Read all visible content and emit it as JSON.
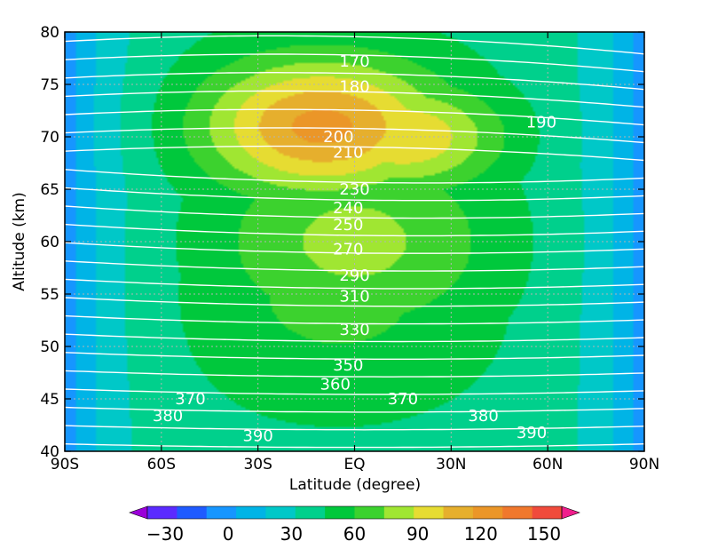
{
  "chart_data": {
    "type": "heatmap",
    "title": "",
    "xlabel": "Latitude (degree)",
    "ylabel": "Altitude (km)",
    "xlim": [
      -90,
      90
    ],
    "ylim": [
      40,
      80
    ],
    "grid": true,
    "x_ticks": [
      {
        "value": -90,
        "label": "90S"
      },
      {
        "value": -60,
        "label": "60S"
      },
      {
        "value": -30,
        "label": "30S"
      },
      {
        "value": 0,
        "label": "EQ"
      },
      {
        "value": 30,
        "label": "30N"
      },
      {
        "value": 60,
        "label": "60N"
      },
      {
        "value": 90,
        "label": "90N"
      }
    ],
    "y_ticks": [
      {
        "value": 40,
        "label": "40"
      },
      {
        "value": 45,
        "label": "45"
      },
      {
        "value": 50,
        "label": "50"
      },
      {
        "value": 55,
        "label": "55"
      },
      {
        "value": 60,
        "label": "60"
      },
      {
        "value": 65,
        "label": "65"
      },
      {
        "value": 70,
        "label": "70"
      },
      {
        "value": 75,
        "label": "75"
      },
      {
        "value": 80,
        "label": "80"
      }
    ],
    "shading": {
      "levels": [
        -30,
        -15,
        0,
        15,
        30,
        45,
        60,
        75,
        90,
        105,
        120,
        135,
        150
      ],
      "colors": [
        "#9b00d9",
        "#5b2bff",
        "#1f5bff",
        "#1696ff",
        "#00b4e6",
        "#00c8c8",
        "#00d08c",
        "#00c83c",
        "#3cd22e",
        "#a0e632",
        "#e6dc32",
        "#e6af2d",
        "#eb9628",
        "#f0782d",
        "#f04b3c",
        "#f01e8c"
      ],
      "colorbar_labels": [
        {
          "value": -30,
          "label": "−30"
        },
        {
          "value": 0,
          "label": "0"
        },
        {
          "value": 30,
          "label": "30"
        },
        {
          "value": 60,
          "label": "60"
        },
        {
          "value": 90,
          "label": "90"
        },
        {
          "value": 120,
          "label": "120"
        },
        {
          "value": 150,
          "label": "150"
        }
      ],
      "center": {
        "lat": -10,
        "alt": 71,
        "value": 140
      },
      "lobes": [
        {
          "lat": 15,
          "alt": 70,
          "value": 120
        },
        {
          "lat": 0,
          "alt": 60,
          "value": 95
        },
        {
          "lat": -5,
          "alt": 55,
          "value": 80
        }
      ],
      "edge_value": 5,
      "bottom_value": 55
    },
    "contours": {
      "color": "#ffffff",
      "levels": [
        170,
        180,
        190,
        200,
        210,
        220,
        230,
        240,
        250,
        260,
        270,
        280,
        290,
        300,
        310,
        320,
        330,
        340,
        350,
        360,
        370,
        380,
        390
      ],
      "labels": [
        {
          "text": "170",
          "lat": 0,
          "alt": 77.2
        },
        {
          "text": "180",
          "lat": 0,
          "alt": 74.8
        },
        {
          "text": "190",
          "lat": 58,
          "alt": 71.4
        },
        {
          "text": "200",
          "lat": -5,
          "alt": 70.0
        },
        {
          "text": "210",
          "lat": -2,
          "alt": 68.5
        },
        {
          "text": "230",
          "lat": 0,
          "alt": 65.0
        },
        {
          "text": "240",
          "lat": -2,
          "alt": 63.2
        },
        {
          "text": "250",
          "lat": -2,
          "alt": 61.6
        },
        {
          "text": "270",
          "lat": -2,
          "alt": 59.3
        },
        {
          "text": "290",
          "lat": 0,
          "alt": 56.8
        },
        {
          "text": "310",
          "lat": 0,
          "alt": 54.8
        },
        {
          "text": "330",
          "lat": 0,
          "alt": 51.6
        },
        {
          "text": "350",
          "lat": -2,
          "alt": 48.2
        },
        {
          "text": "360",
          "lat": -6,
          "alt": 46.4
        },
        {
          "text": "370",
          "lat": -51,
          "alt": 45.0
        },
        {
          "text": "370",
          "lat": 15,
          "alt": 45.0
        },
        {
          "text": "380",
          "lat": -58,
          "alt": 43.4
        },
        {
          "text": "380",
          "lat": 40,
          "alt": 43.4
        },
        {
          "text": "390",
          "lat": -30,
          "alt": 41.5
        },
        {
          "text": "390",
          "lat": 55,
          "alt": 41.8
        }
      ]
    }
  }
}
